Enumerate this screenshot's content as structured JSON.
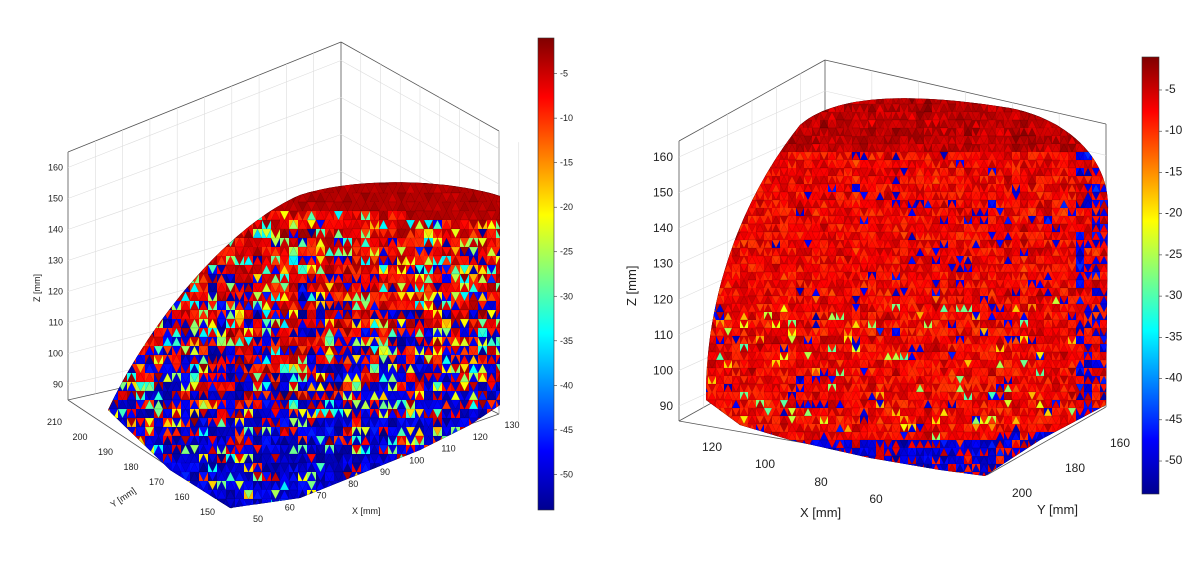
{
  "chart_data": [
    {
      "type": "surface3d",
      "colormap": "jet",
      "colorbar": {
        "range": [
          -54,
          -1
        ],
        "ticks": [
          -5,
          -10,
          -15,
          -20,
          -25,
          -30,
          -35,
          -40,
          -45,
          -50
        ]
      },
      "axes": {
        "x": {
          "label": "X [mm]",
          "ticks": [
            50,
            60,
            70,
            80,
            90,
            100,
            110,
            120,
            130
          ]
        },
        "y": {
          "label": "Y [mm]",
          "ticks": [
            150,
            160,
            170,
            180,
            190,
            200,
            210
          ]
        },
        "z": {
          "label": "Z [mm]",
          "ticks": [
            90,
            100,
            110,
            120,
            130,
            140,
            150,
            160
          ]
        }
      },
      "grid": true
    },
    {
      "type": "surface3d",
      "colormap": "jet",
      "colorbar": {
        "range": [
          -54,
          -1
        ],
        "ticks": [
          -5,
          -10,
          -15,
          -20,
          -25,
          -30,
          -35,
          -40,
          -45,
          -50
        ]
      },
      "axes": {
        "x": {
          "label": "X [mm]",
          "ticks": [
            120,
            100,
            80,
            60
          ]
        },
        "y": {
          "label": "Y [mm]",
          "ticks": [
            160,
            180,
            200
          ]
        },
        "z": {
          "label": "Z [mm]",
          "ticks": [
            90,
            100,
            110,
            120,
            130,
            140,
            150,
            160
          ]
        }
      },
      "grid": true
    }
  ]
}
